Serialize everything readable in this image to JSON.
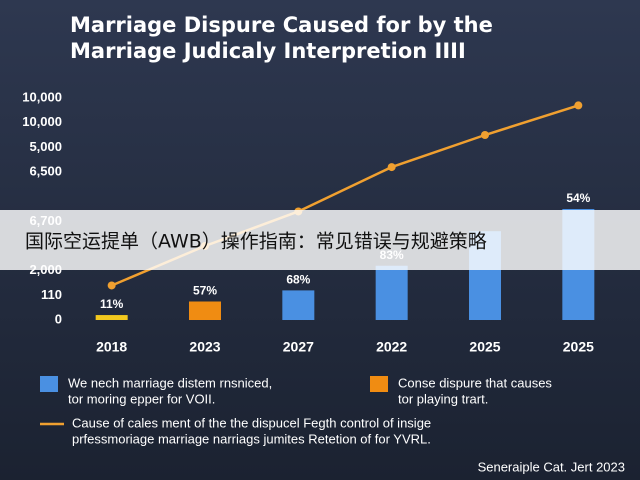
{
  "chart_data": {
    "type": "bar",
    "title": [
      "Marriage Dispure Caused for by the",
      "Marriage Judicaly Interpretion IIII"
    ],
    "categories": [
      "2018",
      "2023",
      "2027",
      "2022",
      "2025",
      "2025"
    ],
    "bars": {
      "values": [
        0.2,
        0.75,
        1.2,
        2.2,
        3.6,
        4.5
      ],
      "colors": [
        "#f2c81e",
        "#f08c12",
        "#4a90e2",
        "#4a90e2",
        "#4a90e2",
        "#4a90e2"
      ],
      "labels": [
        "11%",
        "57%",
        "68%",
        "83%",
        null,
        "54%"
      ]
    },
    "line": {
      "values": [
        1.4,
        3.0,
        4.4,
        6.2,
        7.5,
        8.7
      ],
      "color": "#f0a030"
    },
    "ylim": [
      0,
      9
    ],
    "yticks": [
      0,
      {
        "value": 1,
        "label": "110"
      },
      {
        "value": 2,
        "label": "2,000"
      },
      {
        "value": 4,
        "label": "6,700"
      },
      {
        "value": 6,
        "label": "6,500"
      },
      {
        "value": 7,
        "label": "5,000"
      },
      {
        "value": 8,
        "label": "10,000"
      },
      {
        "value": 9,
        "label": "10,000"
      }
    ],
    "legend": [
      {
        "label": [
          "We nech marriage distem rnsniced,",
          "tor moring epper for VOII."
        ],
        "color": "#4a90e2",
        "kind": "box"
      },
      {
        "label": [
          "Conse dispure that causes",
          "tor playing trart."
        ],
        "color": "#f08c12",
        "kind": "box"
      },
      {
        "label": [
          "Cause of cales ment of the the dispucel Fegth control of insige",
          "prfessmoriage marriage narriags jumites Retetion of for YVRL."
        ],
        "color": "#f0a030",
        "kind": "line"
      }
    ],
    "source": "Seneraiple Cat. Jert 2023"
  },
  "banner": "国际空运提单（AWB）操作指南：常见错误与规避策略"
}
